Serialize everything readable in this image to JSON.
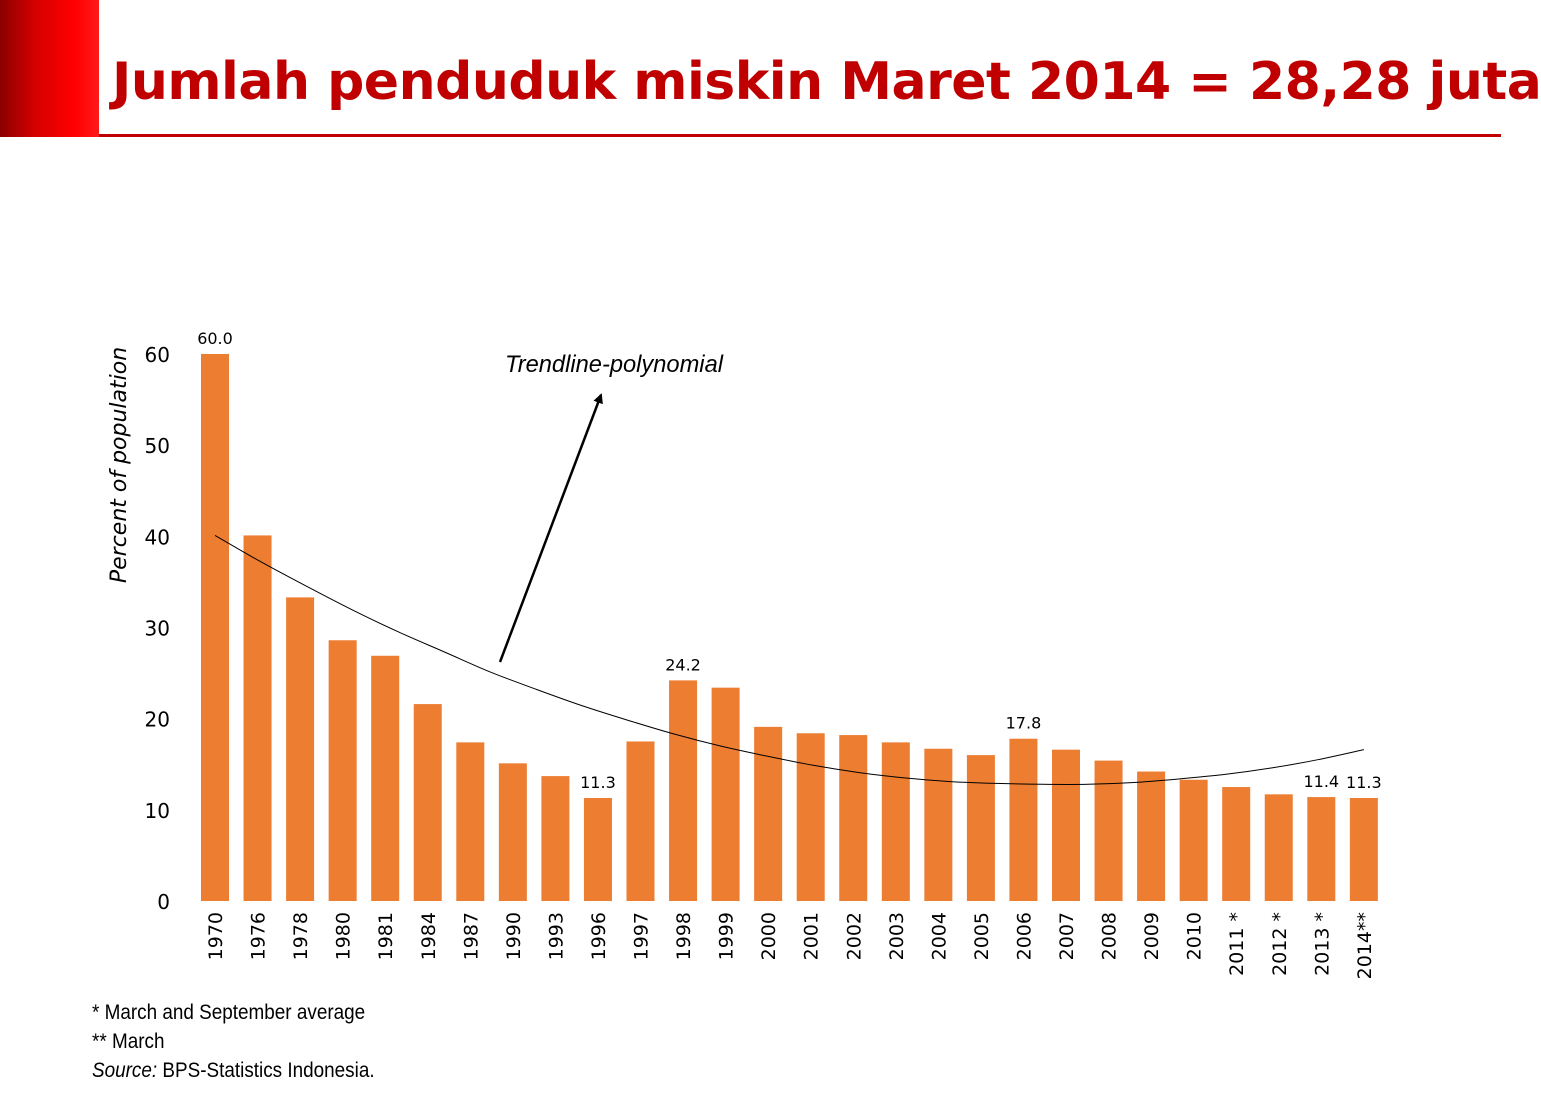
{
  "slide": {
    "title": "Jumlah penduduk miskin Maret 2014 = 28,28 juta"
  },
  "chart_data": {
    "type": "bar",
    "categories": [
      "1970",
      "1976",
      "1978",
      "1980",
      "1981",
      "1984",
      "1987",
      "1990",
      "1993",
      "1996",
      "1997",
      "1998",
      "1999",
      "2000",
      "2001",
      "2002",
      "2003",
      "2004",
      "2005",
      "2006",
      "2007",
      "2008",
      "2009",
      "2010",
      "2011 *",
      "2012 *",
      "2013 *",
      "2014**"
    ],
    "values": [
      60.0,
      40.1,
      33.3,
      28.6,
      26.9,
      21.6,
      17.4,
      15.1,
      13.7,
      11.3,
      17.5,
      24.2,
      23.4,
      19.1,
      18.4,
      18.2,
      17.4,
      16.7,
      16.0,
      17.8,
      16.6,
      15.4,
      14.2,
      13.3,
      12.5,
      11.7,
      11.4,
      11.3
    ],
    "data_labels": [
      {
        "category": "1970",
        "text": "60.0"
      },
      {
        "category": "1996",
        "text": "11.3"
      },
      {
        "category": "1998",
        "text": "24.2"
      },
      {
        "category": "2006",
        "text": "17.8"
      },
      {
        "category": "2013 *",
        "text": "11.4"
      },
      {
        "category": "2014**",
        "text": "11.3"
      }
    ],
    "y_ticks": [
      0,
      10,
      20,
      30,
      40,
      50,
      60
    ],
    "ylim": [
      0,
      60
    ],
    "ylabel": "Percent of population",
    "xlabel": "",
    "bar_color": "#ED7D31",
    "grid": false,
    "trendline": {
      "label": "Trendline-polynomial",
      "type": "polynomial",
      "values": [
        40.1,
        37.2,
        34.5,
        31.9,
        29.5,
        27.3,
        25.1,
        23.2,
        21.4,
        19.8,
        18.3,
        17.0,
        15.9,
        14.9,
        14.1,
        13.5,
        13.1,
        12.9,
        12.8,
        12.8,
        13.0,
        13.4,
        13.9,
        14.6,
        15.5,
        16.6
      ]
    }
  },
  "notes": {
    "line1": "* March and September average",
    "line2": "** March",
    "source_label": "Source:",
    "source_text": " BPS-Statistics Indonesia."
  }
}
